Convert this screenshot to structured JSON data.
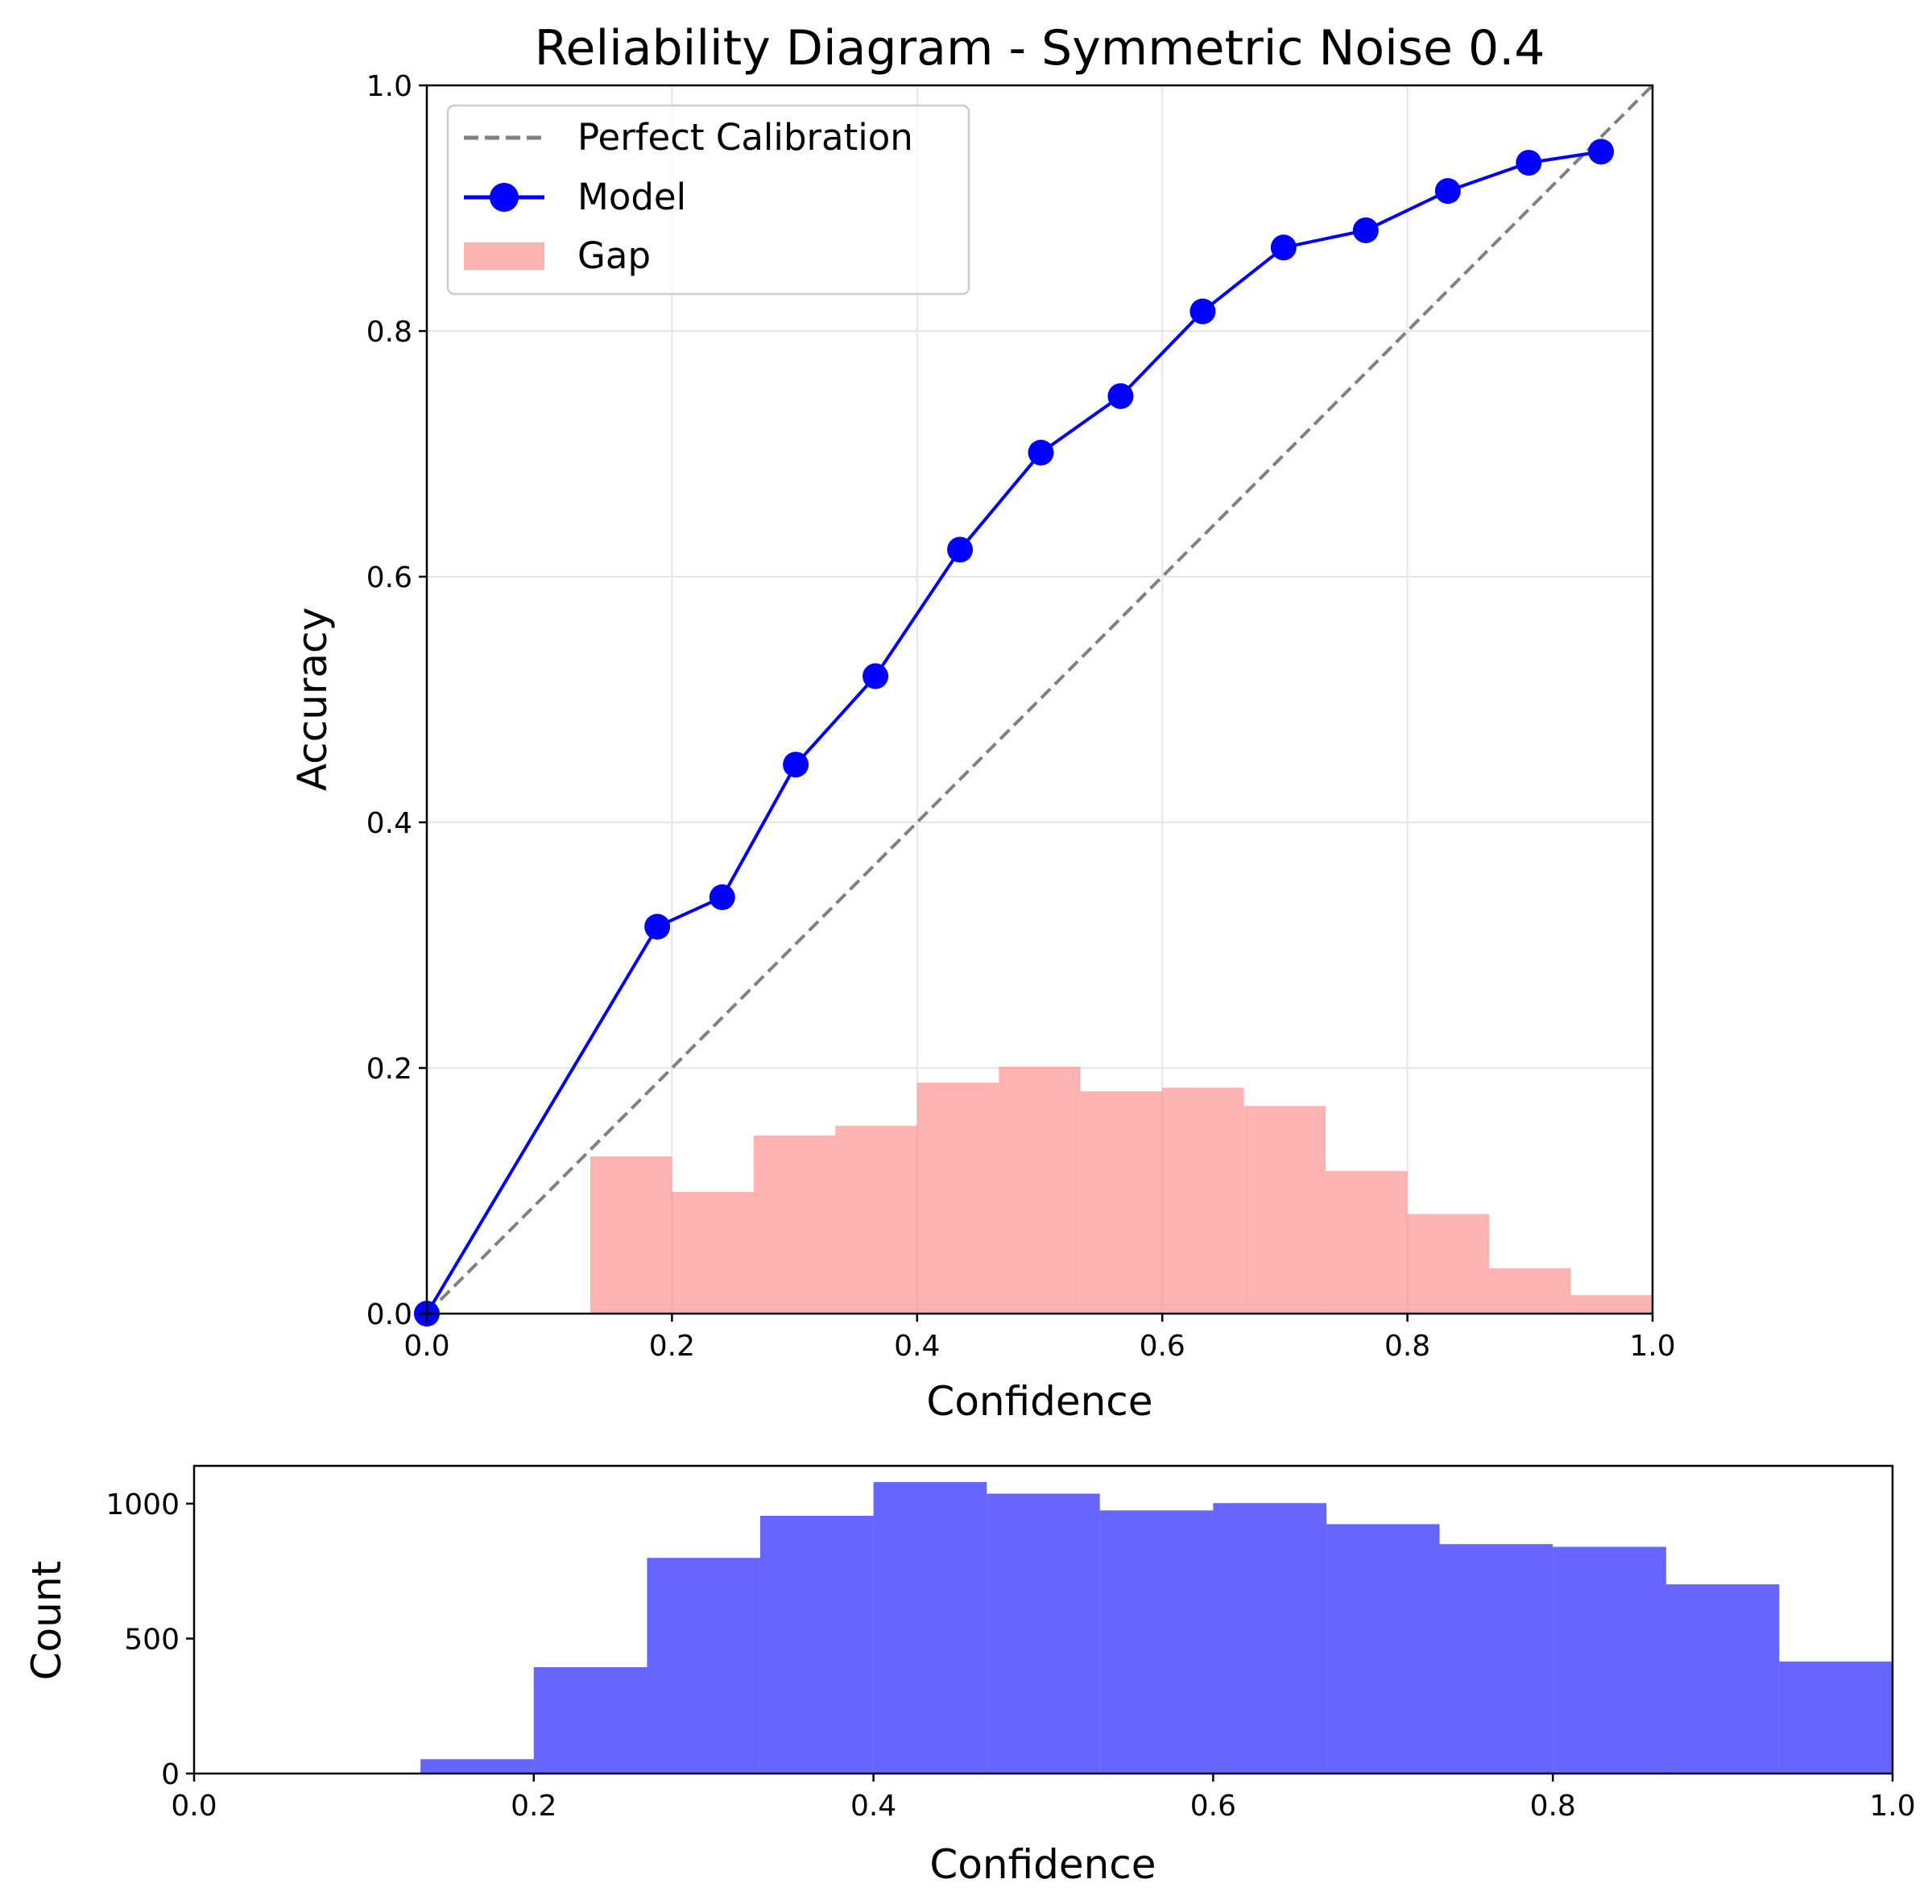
{
  "chart_data": [
    {
      "type": "line",
      "title": "Reliability Diagram - Symmetric Noise 0.4",
      "xlabel": "Confidence",
      "ylabel": "Accuracy",
      "xlim": [
        0,
        1
      ],
      "ylim": [
        0,
        1
      ],
      "grid": true,
      "legend_position": "upper left",
      "xticks": [
        "0.0",
        "0.2",
        "0.4",
        "0.6",
        "0.8",
        "1.0"
      ],
      "yticks": [
        "0.0",
        "0.2",
        "0.4",
        "0.6",
        "0.8",
        "1.0"
      ],
      "series": [
        {
          "name": "Perfect Calibration",
          "style": "dashed",
          "color": "#808080",
          "x": [
            0,
            1
          ],
          "y": [
            0,
            1
          ]
        },
        {
          "name": "Model",
          "style": "line-marker",
          "color": "#0000ff",
          "x": [
            0.0,
            0.188,
            0.241,
            0.301,
            0.366,
            0.435,
            0.501,
            0.566,
            0.633,
            0.699,
            0.766,
            0.833,
            0.899,
            0.958
          ],
          "y": [
            0.0,
            0.315,
            0.339,
            0.447,
            0.519,
            0.622,
            0.701,
            0.747,
            0.816,
            0.868,
            0.882,
            0.914,
            0.937,
            0.946
          ]
        },
        {
          "name": "Gap",
          "style": "bar",
          "color": "#ff7f7f",
          "alpha": 0.6,
          "bin_edges": [
            0.1333,
            0.2,
            0.2667,
            0.3333,
            0.4,
            0.4667,
            0.5333,
            0.6,
            0.6667,
            0.7333,
            0.8,
            0.8667,
            0.9333,
            1.0
          ],
          "values": [
            0.128,
            0.099,
            0.145,
            0.153,
            0.188,
            0.201,
            0.181,
            0.184,
            0.169,
            0.116,
            0.081,
            0.037,
            0.015
          ]
        }
      ]
    },
    {
      "type": "bar",
      "title": "",
      "xlabel": "Confidence",
      "ylabel": "Count",
      "xlim": [
        0,
        1
      ],
      "ylim": [
        0,
        1140
      ],
      "grid": false,
      "xticks": [
        "0.0",
        "0.2",
        "0.4",
        "0.6",
        "0.8",
        "1.0"
      ],
      "yticks": [
        "0",
        "500",
        "1000"
      ],
      "color": "#0000ff",
      "alpha": 0.6,
      "bin_edges": [
        0.1333,
        0.2,
        0.2667,
        0.3333,
        0.4,
        0.4667,
        0.5333,
        0.6,
        0.6667,
        0.7333,
        0.8,
        0.8667,
        0.9333,
        1.0
      ],
      "values": [
        53,
        394,
        799,
        955,
        1080,
        1037,
        975,
        1002,
        924,
        850,
        840,
        701,
        415
      ]
    }
  ]
}
